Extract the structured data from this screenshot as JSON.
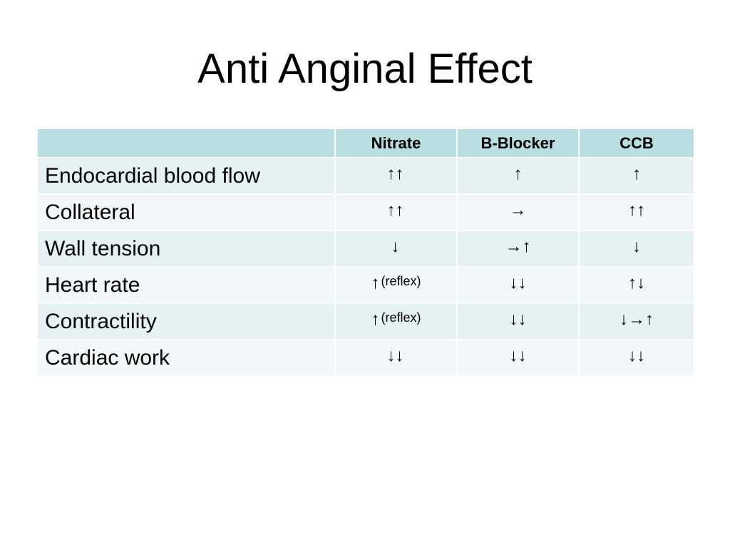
{
  "slide": {
    "title": "Anti Anginal Effect"
  },
  "table": {
    "columns": [
      "",
      "Nitrate",
      "B-Blocker",
      "CCB"
    ],
    "rows": [
      {
        "label": "Endocardial blood flow",
        "nitrate": "↑↑",
        "nitrate_note": "",
        "b_blocker": "↑",
        "ccb": "↑"
      },
      {
        "label": "Collateral",
        "nitrate": "↑↑",
        "nitrate_note": "",
        "b_blocker": "→",
        "ccb": "↑↑"
      },
      {
        "label": "Wall tension",
        "nitrate": "↓",
        "nitrate_note": "",
        "b_blocker": "→↑",
        "ccb": "↓"
      },
      {
        "label": "Heart rate",
        "nitrate": "↑",
        "nitrate_note": "(reflex)",
        "b_blocker": "↓↓",
        "ccb": "↑↓"
      },
      {
        "label": "Contractility",
        "nitrate": "↑",
        "nitrate_note": "(reflex)",
        "b_blocker": "↓↓",
        "ccb": "↓→↑"
      },
      {
        "label": "Cardiac work",
        "nitrate": "↓↓",
        "nitrate_note": "",
        "b_blocker": "↓↓",
        "ccb": "↓↓"
      }
    ]
  }
}
